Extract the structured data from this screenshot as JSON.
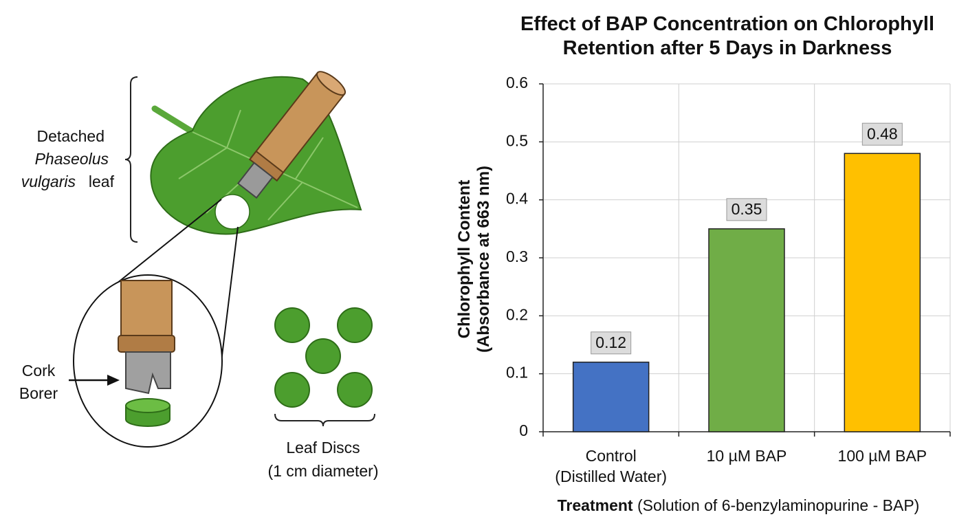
{
  "diagram": {
    "leaf_label": {
      "line1": "Detached",
      "line2": "Phaseolus",
      "line3_italic": "vulgaris",
      "line3": "leaf"
    },
    "borer_label": {
      "line1": "Cork",
      "line2": "Borer"
    },
    "discs_label": {
      "line1": "Leaf Discs",
      "line2": "(1 cm diameter)"
    }
  },
  "chart_data": {
    "type": "bar",
    "title": "Effect of BAP Concentration on Chlorophyll\nRetention after 5 Days in Darkness",
    "ylabel": "Chlorophyll Content\n(Absorbance at 663 nm)",
    "xlabel": {
      "emphasis": "Treatment",
      "text": "(Solution of 6-benzylaminopurine - BAP)"
    },
    "categories": [
      "Control\n(Distilled Water)",
      "10 µM BAP",
      "100 µM BAP"
    ],
    "values": [
      0.12,
      0.35,
      0.48
    ],
    "colors": [
      "#4472c4",
      "#70ad47",
      "#ffc000"
    ],
    "ylim": [
      0,
      0.6
    ],
    "yticks": [
      0,
      0.1,
      0.2,
      0.3,
      0.4,
      0.5,
      0.6
    ],
    "grid": true
  }
}
